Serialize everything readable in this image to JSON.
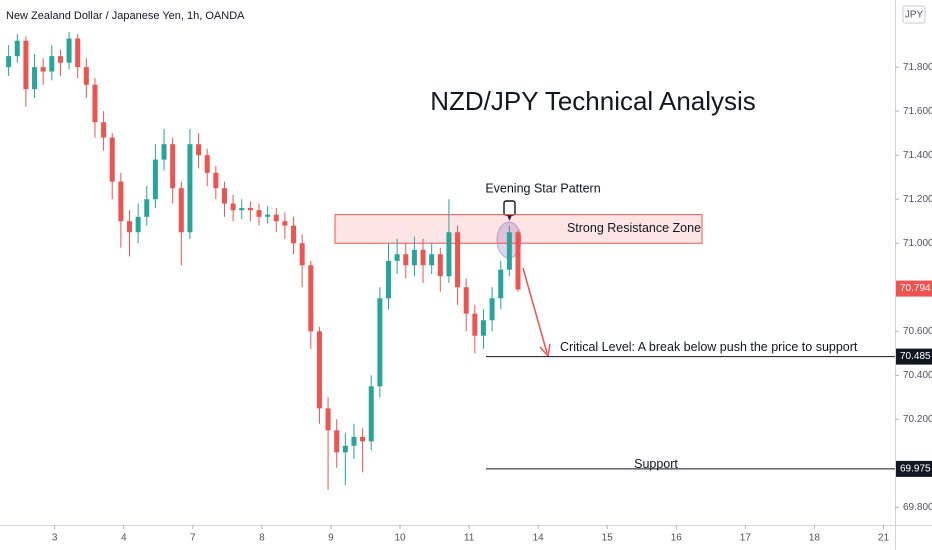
{
  "chart_data": {
    "type": "candlestick",
    "title": "New Zealand Dollar / Japanese Yen, 1h, OANDA",
    "currency": "JPY",
    "x": [
      3,
      6,
      9,
      12,
      15,
      18,
      21,
      24,
      27,
      30,
      33,
      36,
      39,
      42,
      45,
      48,
      51,
      54,
      57,
      60,
      63,
      66,
      69,
      72,
      75,
      78,
      81,
      84,
      87,
      90,
      93,
      96,
      99,
      102,
      105,
      108,
      111,
      114,
      117,
      120,
      123,
      126,
      129,
      132,
      135,
      138,
      141,
      144,
      147,
      150,
      153,
      156,
      159,
      162,
      165,
      168,
      171,
      174,
      177,
      180
    ],
    "open": [
      71.8,
      71.85,
      71.92,
      71.7,
      71.8,
      71.78,
      71.85,
      71.82,
      71.93,
      71.8,
      71.72,
      71.55,
      71.48,
      71.28,
      71.1,
      71.05,
      71.12,
      71.2,
      71.38,
      71.45,
      71.25,
      71.05,
      71.45,
      71.4,
      71.32,
      71.25,
      71.18,
      71.15,
      71.16,
      71.15,
      71.12,
      71.13,
      71.1,
      71.08,
      71.0,
      70.9,
      70.6,
      70.25,
      70.15,
      70.05,
      70.08,
      70.12,
      70.1,
      70.35,
      70.75,
      70.92,
      70.95,
      70.9,
      70.97,
      70.9,
      70.95,
      70.85,
      71.05,
      70.8,
      70.68,
      70.58,
      70.65,
      70.75,
      70.88,
      71.05
    ],
    "high": [
      71.9,
      71.95,
      71.94,
      71.86,
      71.84,
      71.9,
      71.88,
      71.96,
      71.95,
      71.84,
      71.75,
      71.6,
      71.5,
      71.32,
      71.15,
      71.18,
      71.26,
      71.45,
      71.52,
      71.48,
      71.28,
      71.52,
      71.5,
      71.43,
      71.35,
      71.28,
      71.22,
      71.2,
      71.19,
      71.18,
      71.17,
      71.16,
      71.14,
      71.12,
      71.04,
      70.92,
      70.62,
      70.3,
      70.2,
      70.14,
      70.18,
      70.16,
      70.4,
      70.8,
      71.0,
      71.02,
      71.0,
      71.03,
      71.02,
      71.0,
      70.98,
      71.2,
      71.08,
      70.84,
      70.72,
      70.7,
      70.8,
      70.92,
      71.08,
      71.06
    ],
    "low": [
      71.76,
      71.82,
      71.62,
      71.66,
      71.72,
      71.74,
      71.76,
      71.79,
      71.75,
      71.66,
      71.48,
      71.42,
      71.2,
      70.98,
      70.94,
      71.0,
      71.08,
      71.16,
      71.33,
      71.18,
      70.9,
      71.02,
      71.34,
      71.26,
      71.2,
      71.12,
      71.1,
      71.11,
      71.1,
      71.08,
      71.09,
      71.05,
      71.02,
      70.95,
      70.8,
      70.52,
      70.18,
      69.88,
      69.98,
      69.9,
      70.02,
      69.96,
      70.06,
      70.3,
      70.7,
      70.86,
      70.84,
      70.85,
      70.82,
      70.86,
      70.78,
      70.82,
      70.72,
      70.6,
      70.5,
      70.52,
      70.6,
      70.7,
      70.85,
      70.78
    ],
    "close": [
      71.85,
      71.92,
      71.7,
      71.8,
      71.78,
      71.85,
      71.82,
      71.93,
      71.8,
      71.72,
      71.55,
      71.48,
      71.28,
      71.1,
      71.05,
      71.12,
      71.2,
      71.38,
      71.45,
      71.25,
      71.05,
      71.45,
      71.4,
      71.32,
      71.25,
      71.18,
      71.15,
      71.16,
      71.15,
      71.12,
      71.13,
      71.1,
      71.08,
      71.0,
      70.9,
      70.6,
      70.25,
      70.15,
      70.05,
      70.08,
      70.12,
      70.1,
      70.35,
      70.75,
      70.92,
      70.95,
      70.9,
      70.97,
      70.9,
      70.95,
      70.85,
      71.05,
      70.8,
      70.68,
      70.58,
      70.65,
      70.75,
      70.88,
      71.05,
      70.79
    ],
    "up_color": "#26a69a",
    "down_color": "#ef5350",
    "xlim": [
      0,
      311
    ],
    "ylim": [
      69.72,
      72.105
    ],
    "xticks": [
      {
        "value": 19,
        "label": "3"
      },
      {
        "value": 43,
        "label": "4"
      },
      {
        "value": 67,
        "label": "7"
      },
      {
        "value": 91,
        "label": "8"
      },
      {
        "value": 115,
        "label": "9"
      },
      {
        "value": 139,
        "label": "10"
      },
      {
        "value": 163,
        "label": "11"
      },
      {
        "value": 187,
        "label": "14"
      },
      {
        "value": 211,
        "label": "15"
      },
      {
        "value": 235,
        "label": "16"
      },
      {
        "value": 259,
        "label": "17"
      },
      {
        "value": 283,
        "label": "18"
      },
      {
        "value": 307,
        "label": "21"
      }
    ],
    "yticks": [
      {
        "value": 69.8,
        "label": "69.800"
      },
      {
        "value": 70.2,
        "label": "70.200"
      },
      {
        "value": 70.4,
        "label": "70.400"
      },
      {
        "value": 70.6,
        "label": "70.600"
      },
      {
        "value": 71.0,
        "label": "71.000"
      },
      {
        "value": 71.2,
        "label": "71.200"
      },
      {
        "value": 71.4,
        "label": "71.400"
      },
      {
        "value": 71.6,
        "label": "71.600"
      },
      {
        "value": 71.8,
        "label": "71.800"
      }
    ],
    "annotations": {
      "headline": "NZD/JPY Technical Analysis",
      "pattern": "Evening Star Pattern",
      "zone": {
        "label": "Strong Resistance Zone",
        "range": [
          71.0,
          71.13
        ]
      },
      "levels": [
        {
          "label": "Critical Level: A break below push the price to support",
          "value": 70.485
        },
        {
          "label": "Support",
          "value": 69.975
        }
      ]
    },
    "last_price": 70.794
  }
}
